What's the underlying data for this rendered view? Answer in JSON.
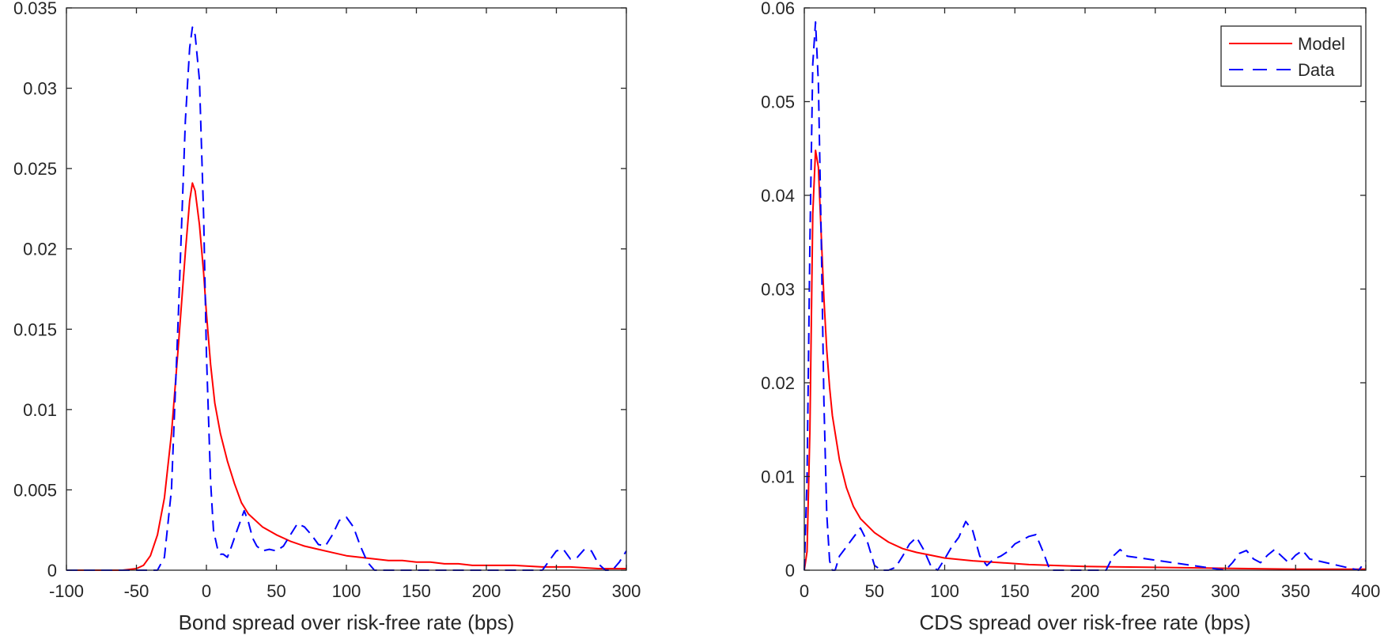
{
  "chart_data": [
    {
      "type": "line",
      "xlabel": "Bond spread over risk-free rate (bps)",
      "ylabel": "",
      "xlim": [
        -100,
        300
      ],
      "ylim": [
        0,
        0.035
      ],
      "x_ticks": [
        -100,
        -50,
        0,
        50,
        100,
        150,
        200,
        250,
        300
      ],
      "x_tick_labels": [
        "-100",
        "-50",
        "0",
        "50",
        "100",
        "150",
        "200",
        "250",
        "300"
      ],
      "y_ticks": [
        0,
        0.005,
        0.01,
        0.015,
        0.02,
        0.025,
        0.03,
        0.035
      ],
      "y_tick_labels": [
        "0",
        "0.005",
        "0.01",
        "0.015",
        "0.02",
        "0.025",
        "0.03",
        "0.035"
      ],
      "grid": false,
      "legend": null,
      "series": [
        {
          "name": "Model",
          "color": "#ff0000",
          "style": "solid",
          "x": [
            -100,
            -60,
            -50,
            -45,
            -40,
            -35,
            -30,
            -25,
            -20,
            -15,
            -12,
            -10,
            -8,
            -5,
            -2,
            0,
            3,
            6,
            10,
            15,
            20,
            25,
            30,
            40,
            50,
            60,
            70,
            80,
            90,
            100,
            110,
            120,
            130,
            140,
            150,
            160,
            170,
            180,
            190,
            200,
            220,
            240,
            260,
            280,
            300
          ],
          "y": [
            0,
            0,
            0.0001,
            0.0003,
            0.0009,
            0.0022,
            0.0045,
            0.0085,
            0.014,
            0.0198,
            0.023,
            0.0241,
            0.0236,
            0.0215,
            0.0185,
            0.016,
            0.0128,
            0.0104,
            0.0085,
            0.0068,
            0.0054,
            0.0042,
            0.0035,
            0.0027,
            0.0022,
            0.0018,
            0.0015,
            0.0013,
            0.0011,
            0.0009,
            0.0008,
            0.0007,
            0.0006,
            0.0006,
            0.0005,
            0.0005,
            0.0004,
            0.0004,
            0.0003,
            0.0003,
            0.0003,
            0.0002,
            0.0002,
            0.0001,
            0.0001
          ]
        },
        {
          "name": "Data",
          "color": "#0000ff",
          "style": "dashed",
          "x": [
            -100,
            -35,
            -30,
            -25,
            -20,
            -15,
            -12,
            -10,
            -8,
            -5,
            -2,
            0,
            3,
            5,
            8,
            10,
            12,
            15,
            18,
            22,
            27,
            30,
            33,
            36,
            40,
            45,
            50,
            55,
            60,
            65,
            70,
            75,
            80,
            85,
            90,
            95,
            100,
            105,
            110,
            115,
            120,
            240,
            245,
            250,
            255,
            260,
            265,
            270,
            275,
            280,
            285,
            290,
            295,
            300
          ],
          "y": [
            0,
            0,
            0.0008,
            0.005,
            0.016,
            0.028,
            0.0325,
            0.0338,
            0.0333,
            0.0305,
            0.022,
            0.0135,
            0.0055,
            0.0025,
            0.0013,
            0.001,
            0.001,
            0.0008,
            0.0015,
            0.0025,
            0.0037,
            0.003,
            0.002,
            0.0015,
            0.0012,
            0.0013,
            0.0012,
            0.0015,
            0.0022,
            0.0029,
            0.0027,
            0.0022,
            0.0016,
            0.0015,
            0.0022,
            0.0031,
            0.0033,
            0.0027,
            0.0015,
            0.0005,
            0,
            0,
            0.0006,
            0.0012,
            0.0013,
            0.0007,
            0.0008,
            0.0013,
            0.0012,
            0.0004,
            0,
            0,
            0.0005,
            0.0012
          ]
        }
      ]
    },
    {
      "type": "line",
      "xlabel": "CDS spread over risk-free rate (bps)",
      "ylabel": "",
      "xlim": [
        0,
        400
      ],
      "ylim": [
        0,
        0.06
      ],
      "x_ticks": [
        0,
        50,
        100,
        150,
        200,
        250,
        300,
        350,
        400
      ],
      "x_tick_labels": [
        "0",
        "50",
        "100",
        "150",
        "200",
        "250",
        "300",
        "350",
        "400"
      ],
      "y_ticks": [
        0,
        0.01,
        0.02,
        0.03,
        0.04,
        0.05,
        0.06
      ],
      "y_tick_labels": [
        "0",
        "0.01",
        "0.02",
        "0.03",
        "0.04",
        "0.05",
        "0.06"
      ],
      "grid": false,
      "legend": {
        "position": "top-right",
        "entries": [
          "Model",
          "Data"
        ]
      },
      "series": [
        {
          "name": "Model",
          "color": "#ff0000",
          "style": "solid",
          "x": [
            0,
            2,
            4,
            6,
            8,
            10,
            12,
            14,
            16,
            18,
            20,
            25,
            30,
            35,
            40,
            50,
            60,
            70,
            80,
            90,
            100,
            120,
            140,
            160,
            180,
            200,
            250,
            300,
            350,
            400
          ],
          "y": [
            0,
            0.002,
            0.015,
            0.038,
            0.0448,
            0.043,
            0.036,
            0.029,
            0.0235,
            0.0195,
            0.0165,
            0.0118,
            0.0088,
            0.0068,
            0.0055,
            0.004,
            0.003,
            0.0023,
            0.0019,
            0.0016,
            0.0013,
            0.001,
            0.0008,
            0.0006,
            0.0005,
            0.0004,
            0.0003,
            0.0002,
            0.0001,
            0.0001
          ]
        },
        {
          "name": "Data",
          "color": "#0000ff",
          "style": "dashed",
          "x": [
            0,
            2,
            4,
            6,
            8,
            10,
            12,
            14,
            16,
            18,
            20,
            22,
            25,
            30,
            35,
            40,
            45,
            50,
            55,
            60,
            65,
            70,
            75,
            80,
            85,
            90,
            95,
            100,
            105,
            110,
            115,
            120,
            125,
            130,
            135,
            140,
            145,
            150,
            155,
            160,
            165,
            170,
            175,
            215,
            220,
            225,
            230,
            300,
            305,
            310,
            315,
            320,
            325,
            330,
            335,
            340,
            345,
            350,
            355,
            360,
            395,
            400
          ],
          "y": [
            0,
            0.01,
            0.035,
            0.054,
            0.0585,
            0.052,
            0.036,
            0.018,
            0.006,
            0.001,
            0,
            0,
            0.0015,
            0.0025,
            0.0035,
            0.0045,
            0.003,
            0.0005,
            0,
            0,
            0.0003,
            0.0015,
            0.0028,
            0.0035,
            0.0022,
            0.0005,
            0,
            0.0012,
            0.0025,
            0.0035,
            0.0052,
            0.0042,
            0.0015,
            0.0005,
            0.0012,
            0.0015,
            0.002,
            0.0028,
            0.0032,
            0.0036,
            0.0038,
            0.002,
            0,
            0,
            0.0015,
            0.0022,
            0.0015,
            0,
            0.0008,
            0.0018,
            0.0021,
            0.0012,
            0.0008,
            0.0016,
            0.0022,
            0.0015,
            0.0008,
            0.0016,
            0.0021,
            0.0012,
            0,
            0.001
          ]
        }
      ]
    }
  ]
}
